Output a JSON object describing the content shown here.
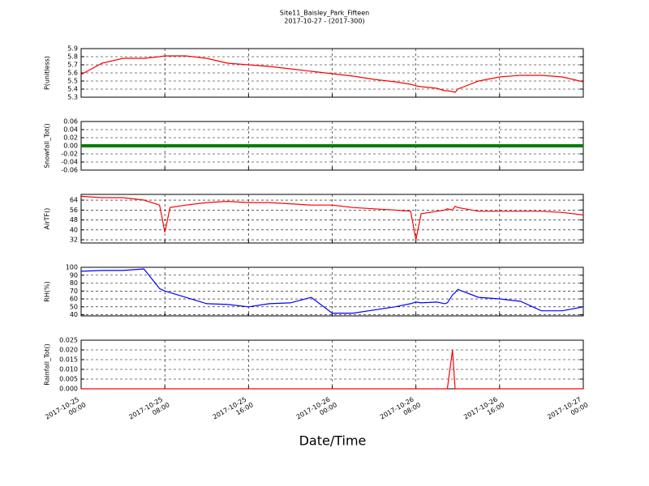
{
  "title": "Site11_Baisley_Park_Fifteen",
  "subtitle": "2017-10-27 - (2017-300)",
  "x_label": "Date/Time",
  "chart_data": [
    {
      "type": "line",
      "y_label": "P(unitless)",
      "grid": true,
      "x": [
        "2017-10-25 00:00",
        "2017-10-25 02:00",
        "2017-10-25 04:00",
        "2017-10-25 06:00",
        "2017-10-25 07:30",
        "2017-10-25 08:00",
        "2017-10-25 08:30",
        "2017-10-25 10:00",
        "2017-10-25 12:00",
        "2017-10-25 14:00",
        "2017-10-25 16:00",
        "2017-10-25 18:00",
        "2017-10-25 20:00",
        "2017-10-25 22:00",
        "2017-10-26 00:00",
        "2017-10-26 02:00",
        "2017-10-26 04:00",
        "2017-10-26 06:00",
        "2017-10-26 07:30",
        "2017-10-26 08:00",
        "2017-10-26 08:30",
        "2017-10-26 10:00",
        "2017-10-26 10:45",
        "2017-10-26 11:00",
        "2017-10-26 11:30",
        "2017-10-26 11:45",
        "2017-10-26 12:00",
        "2017-10-26 14:00",
        "2017-10-26 16:00",
        "2017-10-26 18:00",
        "2017-10-26 20:00",
        "2017-10-26 22:00",
        "2017-10-27 00:00"
      ],
      "series": [
        {
          "color": "#ff0000",
          "values": [
            5.58,
            5.72,
            5.78,
            5.78,
            5.8,
            5.81,
            5.81,
            5.81,
            5.78,
            5.72,
            5.7,
            5.68,
            5.65,
            5.62,
            5.59,
            5.56,
            5.52,
            5.49,
            5.46,
            5.44,
            5.43,
            5.41,
            5.38,
            5.38,
            5.37,
            5.36,
            5.4,
            5.5,
            5.55,
            5.57,
            5.57,
            5.55,
            5.49
          ]
        }
      ],
      "xlim": [
        "2017-10-25 00:00",
        "2017-10-27 00:00"
      ],
      "ylim": [
        5.3,
        5.9
      ],
      "yticks": [
        5.3,
        5.4,
        5.5,
        5.6,
        5.7,
        5.8,
        5.9
      ]
    },
    {
      "type": "line",
      "y_label": "Snowfall_Tot()",
      "grid": true,
      "x": [
        "2017-10-25 00:00",
        "2017-10-25 08:00",
        "2017-10-25 16:00",
        "2017-10-26 00:00",
        "2017-10-26 08:00",
        "2017-10-26 16:00",
        "2017-10-27 00:00"
      ],
      "series": [
        {
          "color": "#008000",
          "values": [
            0,
            0,
            0,
            0,
            0,
            0,
            0
          ]
        }
      ],
      "xlim": [
        "2017-10-25 00:00",
        "2017-10-27 00:00"
      ],
      "ylim": [
        -0.06,
        0.06
      ],
      "yticks": [
        -0.06,
        -0.04,
        -0.02,
        {
          "value": 0,
          "label": "0.00"
        },
        0.02,
        0.04,
        0.06
      ]
    },
    {
      "type": "line",
      "y_label": "AirTF()",
      "grid": true,
      "x": [
        "2017-10-25 00:00",
        "2017-10-25 02:00",
        "2017-10-25 04:00",
        "2017-10-25 06:00",
        "2017-10-25 07:30",
        "2017-10-25 08:00",
        "2017-10-25 08:30",
        "2017-10-25 10:00",
        "2017-10-25 12:00",
        "2017-10-25 14:00",
        "2017-10-25 16:00",
        "2017-10-25 18:00",
        "2017-10-25 20:00",
        "2017-10-25 22:00",
        "2017-10-26 00:00",
        "2017-10-26 02:00",
        "2017-10-26 04:00",
        "2017-10-26 06:00",
        "2017-10-26 07:30",
        "2017-10-26 08:00",
        "2017-10-26 08:30",
        "2017-10-26 10:00",
        "2017-10-26 10:45",
        "2017-10-26 11:00",
        "2017-10-26 11:30",
        "2017-10-26 11:45",
        "2017-10-26 12:00",
        "2017-10-26 14:00",
        "2017-10-26 16:00",
        "2017-10-26 18:00",
        "2017-10-26 20:00",
        "2017-10-26 22:00",
        "2017-10-27 00:00"
      ],
      "series": [
        {
          "color": "#ff0000",
          "values": [
            67,
            66,
            66,
            64,
            60,
            38,
            58,
            60,
            62,
            63,
            62,
            62,
            61,
            60,
            60,
            58,
            57,
            56,
            55,
            32,
            53,
            55,
            56,
            57,
            56,
            59,
            58,
            55,
            55,
            55,
            55,
            54,
            52
          ]
        }
      ],
      "xlim": [
        "2017-10-25 00:00",
        "2017-10-27 00:00"
      ],
      "ylim": [
        29.4,
        68.6
      ],
      "yticks": [
        32,
        40,
        48,
        56,
        64
      ]
    },
    {
      "type": "line",
      "y_label": "RH(%)",
      "grid": true,
      "x": [
        "2017-10-25 00:00",
        "2017-10-25 02:00",
        "2017-10-25 04:00",
        "2017-10-25 06:00",
        "2017-10-25 07:30",
        "2017-10-25 08:00",
        "2017-10-25 08:30",
        "2017-10-25 10:00",
        "2017-10-25 12:00",
        "2017-10-25 14:00",
        "2017-10-25 16:00",
        "2017-10-25 18:00",
        "2017-10-25 20:00",
        "2017-10-25 22:00",
        "2017-10-26 00:00",
        "2017-10-26 02:00",
        "2017-10-26 04:00",
        "2017-10-26 06:00",
        "2017-10-26 07:30",
        "2017-10-26 08:00",
        "2017-10-26 08:30",
        "2017-10-26 10:00",
        "2017-10-26 10:45",
        "2017-10-26 11:00",
        "2017-10-26 11:30",
        "2017-10-26 11:45",
        "2017-10-26 12:00",
        "2017-10-26 14:00",
        "2017-10-26 16:00",
        "2017-10-26 18:00",
        "2017-10-26 20:00",
        "2017-10-26 22:00",
        "2017-10-27 00:00"
      ],
      "series": [
        {
          "color": "#0000ff",
          "values": [
            95,
            96,
            96,
            98,
            73,
            70,
            68,
            62,
            54,
            53,
            50,
            54,
            55,
            62,
            42,
            42,
            46,
            50,
            54,
            56,
            55,
            56,
            54,
            55,
            65,
            68,
            72,
            62,
            60,
            57,
            45,
            45,
            50
          ]
        }
      ],
      "xlim": [
        "2017-10-25 00:00",
        "2017-10-27 00:00"
      ],
      "ylim": [
        38.5,
        100
      ],
      "yticks": [
        40,
        50,
        60,
        70,
        80,
        90,
        100
      ]
    },
    {
      "type": "line",
      "y_label": "Rainfall_Tot()",
      "grid": true,
      "x": [
        "2017-10-25 00:00",
        "2017-10-25 08:00",
        "2017-10-25 16:00",
        "2017-10-26 00:00",
        "2017-10-26 08:00",
        "2017-10-26 11:00",
        "2017-10-26 11:30",
        "2017-10-26 11:45",
        "2017-10-26 16:00",
        "2017-10-27 00:00"
      ],
      "series": [
        {
          "color": "#ff0000",
          "values": [
            0,
            0,
            0,
            0,
            0,
            0,
            0.02,
            0,
            0,
            0
          ]
        }
      ],
      "xlim": [
        "2017-10-25 00:00",
        "2017-10-27 00:00"
      ],
      "ylim": [
        0,
        0.025
      ],
      "yticks": [
        {
          "value": 0,
          "label": "0.000"
        },
        0.005,
        {
          "value": 0.01,
          "label": "0.010"
        },
        0.015,
        {
          "value": 0.02,
          "label": "0.020"
        },
        0.025
      ],
      "xticks": [
        {
          "value": "2017-10-25 00:00",
          "label": "2017-10-25 00:00"
        },
        {
          "value": "2017-10-25 08:00",
          "label": "2017-10-25 08:00"
        },
        {
          "value": "2017-10-25 16:00",
          "label": "2017-10-25 16:00"
        },
        {
          "value": "2017-10-26 00:00",
          "label": "2017-10-26 00:00"
        },
        {
          "value": "2017-10-26 08:00",
          "label": "2017-10-26 08:00"
        },
        {
          "value": "2017-10-26 16:00",
          "label": "2017-10-26 16:00"
        },
        {
          "value": "2017-10-27 00:00",
          "label": "2017-10-27 00:00"
        }
      ]
    }
  ]
}
